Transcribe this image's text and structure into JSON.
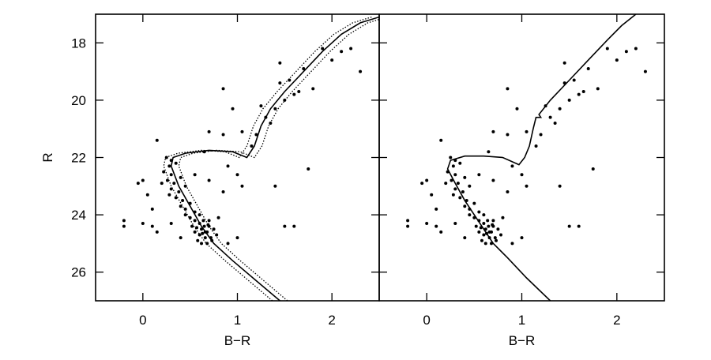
{
  "chart_data": [
    {
      "type": "scatter",
      "xlabel": "B−R",
      "ylabel": "R",
      "xlim": [
        -0.5,
        2.5
      ],
      "ylim": [
        27,
        17
      ],
      "xticks": [
        0,
        1,
        2
      ],
      "yticks": [
        18,
        20,
        22,
        24,
        26
      ],
      "ytick_labels": true,
      "color": "#000000",
      "points": {
        "x": [
          0.25,
          0.3,
          0.28,
          0.35,
          0.22,
          0.3,
          0.26,
          0.33,
          0.4,
          0.2,
          0.3,
          0.38,
          0.45,
          0.35,
          0.42,
          0.28,
          0.5,
          0.45,
          0.4,
          0.55,
          0.5,
          0.55,
          0.6,
          0.62,
          0.65,
          0.68,
          0.6,
          0.7,
          0.72,
          0.58,
          0.66,
          0.64,
          0.7,
          0.75,
          0.55,
          0.62,
          0.68,
          0.52,
          0.78,
          0.6,
          0.66,
          0.63,
          0.69,
          0.57,
          0.73,
          0.0,
          -0.05,
          0.05,
          0.1,
          0.0,
          0.1,
          -0.2,
          -0.2,
          0.15,
          0.3,
          0.4,
          0.45,
          0.15,
          0.8,
          0.9,
          1.0,
          0.85,
          1.05,
          1.4,
          1.5,
          1.6,
          1.75,
          0.9,
          1.0,
          0.7,
          0.85,
          0.95,
          1.05,
          1.2,
          1.25,
          1.3,
          1.35,
          1.4,
          1.45,
          1.5,
          1.55,
          1.6,
          1.65,
          1.7,
          1.8,
          1.9,
          2.0,
          2.1,
          2.2,
          2.3,
          1.45,
          0.85,
          1.15,
          0.65,
          0.55,
          0.7
        ],
        "y": [
          22.0,
          22.1,
          22.3,
          22.2,
          22.5,
          22.6,
          22.8,
          22.9,
          22.7,
          22.9,
          23.1,
          23.2,
          23.0,
          23.4,
          23.5,
          23.3,
          23.6,
          23.8,
          23.7,
          23.9,
          24.1,
          24.2,
          24.3,
          24.5,
          24.4,
          24.6,
          24.7,
          24.4,
          24.8,
          24.9,
          24.8,
          24.2,
          24.2,
          24.5,
          24.6,
          25.0,
          25.0,
          24.4,
          24.7,
          24.0,
          24.6,
          24.65,
          24.35,
          24.45,
          24.9,
          22.8,
          22.9,
          23.3,
          23.8,
          24.3,
          24.4,
          24.2,
          24.4,
          24.6,
          24.3,
          24.8,
          24.0,
          21.4,
          24.1,
          25.0,
          24.8,
          23.2,
          23.0,
          23.0,
          24.4,
          24.4,
          22.4,
          22.3,
          22.6,
          21.1,
          21.2,
          20.3,
          21.1,
          21.2,
          20.2,
          20.6,
          20.8,
          20.3,
          19.4,
          20.0,
          19.3,
          19.8,
          19.7,
          18.9,
          19.6,
          18.2,
          18.6,
          18.3,
          18.2,
          19.0,
          18.7,
          19.6,
          21.6,
          21.8,
          22.6,
          22.8
        ]
      },
      "lines": [
        {
          "style": "solid",
          "x": [
            1.45,
            1.2,
            0.95,
            0.75,
            0.62,
            0.5,
            0.38,
            0.3,
            0.32,
            0.45,
            0.7,
            0.95,
            1.1,
            1.18,
            1.25,
            1.35,
            1.5,
            1.7,
            1.9,
            2.1,
            2.3,
            2.5
          ],
          "y": [
            27,
            26.3,
            25.6,
            25.0,
            24.4,
            23.7,
            23.0,
            22.3,
            22.0,
            21.85,
            21.75,
            21.8,
            22.0,
            21.6,
            20.9,
            20.3,
            19.7,
            19.0,
            18.3,
            17.7,
            17.3,
            17.1
          ]
        },
        {
          "style": "dotted",
          "x": [
            1.37,
            1.12,
            0.87,
            0.67,
            0.54,
            0.42,
            0.3,
            0.22,
            0.24,
            0.37,
            0.62,
            0.87,
            1.02,
            1.1,
            1.17,
            1.27,
            1.42,
            1.62,
            1.82,
            2.02,
            2.22,
            2.42
          ],
          "y": [
            27,
            26.3,
            25.6,
            25.0,
            24.4,
            23.7,
            23.0,
            22.3,
            22.0,
            21.85,
            21.75,
            21.8,
            22.0,
            21.6,
            20.9,
            20.3,
            19.7,
            19.0,
            18.3,
            17.7,
            17.3,
            17.1
          ]
        },
        {
          "style": "dotted",
          "x": [
            1.53,
            1.28,
            1.03,
            0.83,
            0.7,
            0.58,
            0.46,
            0.38,
            0.4,
            0.53,
            0.78,
            1.03,
            1.18,
            1.26,
            1.33,
            1.43,
            1.58,
            1.78,
            1.98,
            2.18,
            2.38,
            2.58
          ],
          "y": [
            27,
            26.3,
            25.6,
            25.0,
            24.4,
            23.7,
            23.0,
            22.3,
            22.0,
            21.85,
            21.75,
            21.8,
            22.0,
            21.6,
            20.9,
            20.3,
            19.7,
            19.0,
            18.3,
            17.7,
            17.3,
            17.1
          ]
        }
      ]
    },
    {
      "type": "scatter",
      "xlabel": "B−R",
      "xlim": [
        -0.5,
        2.5
      ],
      "ylim": [
        27,
        17
      ],
      "xticks": [
        0,
        1,
        2
      ],
      "yticks": [
        18,
        20,
        22,
        24,
        26
      ],
      "ytick_labels": false,
      "color": "#000000",
      "points": {
        "x": [
          0.25,
          0.3,
          0.28,
          0.35,
          0.22,
          0.3,
          0.26,
          0.33,
          0.4,
          0.2,
          0.3,
          0.38,
          0.45,
          0.35,
          0.42,
          0.28,
          0.5,
          0.45,
          0.4,
          0.55,
          0.5,
          0.55,
          0.6,
          0.62,
          0.65,
          0.68,
          0.6,
          0.7,
          0.72,
          0.58,
          0.66,
          0.64,
          0.7,
          0.75,
          0.55,
          0.62,
          0.68,
          0.52,
          0.78,
          0.6,
          0.66,
          0.63,
          0.69,
          0.57,
          0.73,
          0.0,
          -0.05,
          0.05,
          0.1,
          0.0,
          0.1,
          -0.2,
          -0.2,
          0.15,
          0.3,
          0.4,
          0.45,
          0.15,
          0.8,
          0.9,
          1.0,
          0.85,
          1.05,
          1.4,
          1.5,
          1.6,
          1.75,
          0.9,
          1.0,
          0.7,
          0.85,
          0.95,
          1.05,
          1.2,
          1.25,
          1.3,
          1.35,
          1.4,
          1.45,
          1.5,
          1.55,
          1.6,
          1.65,
          1.7,
          1.8,
          1.9,
          2.0,
          2.1,
          2.2,
          2.3,
          1.45,
          0.85,
          1.15,
          0.65,
          0.55,
          0.7
        ],
        "y": [
          22.0,
          22.1,
          22.3,
          22.2,
          22.5,
          22.6,
          22.8,
          22.9,
          22.7,
          22.9,
          23.1,
          23.2,
          23.0,
          23.4,
          23.5,
          23.3,
          23.6,
          23.8,
          23.7,
          23.9,
          24.1,
          24.2,
          24.3,
          24.5,
          24.4,
          24.6,
          24.7,
          24.4,
          24.8,
          24.9,
          24.8,
          24.2,
          24.2,
          24.5,
          24.6,
          25.0,
          25.0,
          24.4,
          24.7,
          24.0,
          24.6,
          24.65,
          24.35,
          24.45,
          24.9,
          22.8,
          22.9,
          23.3,
          23.8,
          24.3,
          24.4,
          24.2,
          24.4,
          24.6,
          24.3,
          24.8,
          24.0,
          21.4,
          24.1,
          25.0,
          24.8,
          23.2,
          23.0,
          23.0,
          24.4,
          24.4,
          22.4,
          22.3,
          22.6,
          21.1,
          21.2,
          20.3,
          21.1,
          21.2,
          20.2,
          20.6,
          20.8,
          20.3,
          19.4,
          20.0,
          19.3,
          19.8,
          19.7,
          18.9,
          19.6,
          18.2,
          18.6,
          18.3,
          18.2,
          19.0,
          18.7,
          19.6,
          21.6,
          21.8,
          22.6,
          22.8
        ]
      },
      "lines": [
        {
          "style": "solid",
          "x": [
            1.3,
            1.05,
            0.85,
            0.7,
            0.6,
            0.5,
            0.4,
            0.3,
            0.22,
            0.25,
            0.4,
            0.6,
            0.8,
            0.97,
            1.03,
            1.08,
            1.12,
            1.15,
            1.2,
            1.18,
            1.3,
            1.5,
            1.7,
            1.9,
            2.05,
            2.2
          ],
          "y": [
            27,
            26.2,
            25.5,
            25.0,
            24.5,
            24.0,
            23.5,
            22.9,
            22.4,
            22.1,
            21.95,
            21.95,
            22.0,
            22.25,
            22.0,
            21.6,
            21.0,
            20.6,
            20.6,
            20.5,
            20.0,
            19.3,
            18.6,
            17.9,
            17.4,
            17.0
          ]
        }
      ]
    }
  ]
}
